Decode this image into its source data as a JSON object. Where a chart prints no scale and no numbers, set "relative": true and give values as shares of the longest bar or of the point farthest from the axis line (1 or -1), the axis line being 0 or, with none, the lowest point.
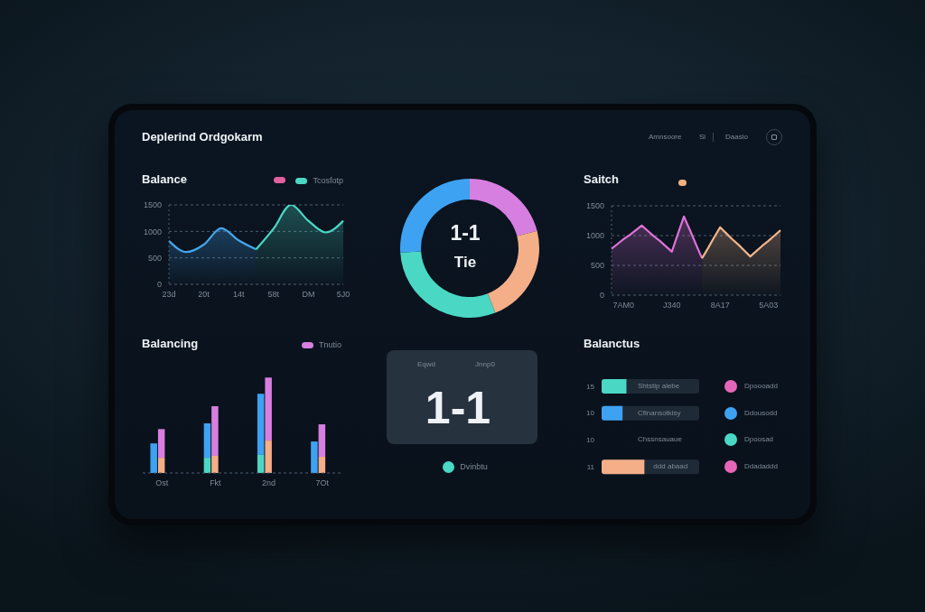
{
  "chart_data": [
    {
      "type": "other",
      "title": "Deplerind Ordgokarm",
      "annotations": [
        "Amnsoore",
        "Si",
        "Daasio"
      ]
    },
    {
      "type": "area",
      "title": "Balance",
      "categories": [
        "23d",
        null,
        "20t",
        null,
        "14t",
        null,
        "58t",
        null,
        "DM",
        null,
        "5J0"
      ],
      "series": [
        {
          "color": "#45a6ee",
          "values": [
            820,
            610,
            750,
            1060,
            830,
            660,
            null,
            null,
            null,
            null,
            null
          ]
        },
        {
          "name": "Tcosfotp",
          "color": "#4ad8c4",
          "values": [
            null,
            null,
            null,
            null,
            null,
            660,
            1050,
            1500,
            1200,
            980,
            1200
          ]
        }
      ],
      "ylim": [
        0,
        1500
      ],
      "yticks": [
        0,
        500,
        1000,
        1500
      ],
      "grid": "y",
      "legend": "top right"
    },
    {
      "type": "donut",
      "categories": [
        null,
        null,
        "Dvinbtu",
        null
      ],
      "values": [
        21,
        23,
        30,
        26
      ],
      "colors": [
        "#d77fe0",
        "#f4ae88",
        "#4ad8c4",
        "#3ea2f2"
      ],
      "legend": "bottom",
      "annotations": [
        "1-1",
        "Tie",
        "Eqwd",
        "Jnnp0",
        "1-1"
      ]
    },
    {
      "type": "area",
      "title": "Saitch",
      "categories": [
        null,
        null,
        "7AM0",
        null,
        null,
        null,
        null,
        null,
        null,
        null,
        "J340",
        null,
        null,
        null,
        null,
        null,
        null,
        null,
        "8A17",
        null,
        null,
        null,
        null,
        null,
        null,
        null,
        "5A03",
        null,
        null
      ],
      "series": [
        {
          "color": "#e072d8",
          "values": [
            780,
            860,
            940,
            1010,
            1090,
            1170,
            1080,
            990,
            910,
            820,
            730,
            1030,
            1320,
            1090,
            850,
            620,
            null,
            null,
            null,
            null,
            null,
            null,
            null,
            null,
            null,
            null,
            null,
            null,
            null
          ]
        },
        {
          "color": "#f2b58a",
          "values": [
            null,
            null,
            null,
            null,
            null,
            null,
            null,
            null,
            null,
            null,
            null,
            null,
            null,
            null,
            null,
            620,
            790,
            970,
            1140,
            1040,
            940,
            850,
            750,
            650,
            740,
            830,
            910,
            1000,
            1090
          ]
        }
      ],
      "ylim": [
        0,
        1500
      ],
      "yticks": [
        0,
        500,
        1000,
        1500
      ],
      "grid": "y"
    },
    {
      "type": "bar",
      "title": "Balancing",
      "categories": [
        null,
        null,
        "Ost",
        null,
        null,
        null,
        null,
        null,
        null,
        "Fkt",
        null,
        null,
        null,
        null,
        null,
        null,
        "2nd",
        null,
        null,
        null,
        null,
        null,
        null,
        "7Ot",
        null,
        null
      ],
      "stacked": true,
      "relative": true,
      "series": [
        {
          "color": "#4ad8c4",
          "values": [
            null,
            null,
            null,
            null,
            null,
            null,
            null,
            null,
            0.16,
            null,
            null,
            null,
            null,
            null,
            null,
            0.19,
            null,
            null,
            null,
            null,
            null,
            null,
            null,
            null,
            null,
            null
          ]
        },
        {
          "color": "#3ea2f2",
          "values": [
            null,
            0.31,
            null,
            null,
            null,
            null,
            null,
            null,
            0.36,
            null,
            null,
            null,
            null,
            null,
            null,
            0.64,
            null,
            null,
            null,
            null,
            null,
            null,
            0.33,
            null,
            null,
            null
          ]
        },
        {
          "color": "#f4ae88",
          "values": [
            null,
            null,
            0.16,
            null,
            null,
            null,
            null,
            null,
            null,
            0.18,
            null,
            null,
            null,
            null,
            null,
            null,
            0.34,
            null,
            null,
            null,
            null,
            null,
            null,
            0.17,
            null,
            null
          ]
        },
        {
          "name": "Tnutio",
          "color": "#d77fe0",
          "values": [
            null,
            null,
            0.3,
            null,
            null,
            null,
            null,
            null,
            null,
            0.52,
            null,
            null,
            null,
            null,
            null,
            null,
            0.66,
            null,
            null,
            null,
            null,
            null,
            null,
            0.34,
            null,
            null
          ]
        }
      ],
      "legend": "top right"
    },
    {
      "type": "bar",
      "orientation": "horizontal",
      "title": "Balanctus",
      "relative": true,
      "categories": [
        "15",
        "10",
        "10",
        "11"
      ],
      "values": [
        0.58,
        0.49,
        0,
        1
      ],
      "colors": [
        "#4ad8c4",
        "#3ea2f2",
        null,
        "#f4ae88"
      ],
      "annotations": [
        "Shtstip alebe",
        "Cfinansotkisy",
        "Chssnsauaue",
        "ddd abaad",
        "Dpoooadd",
        "Ddousodd",
        "Dpoosad",
        "Ddadaddd"
      ]
    }
  ]
}
